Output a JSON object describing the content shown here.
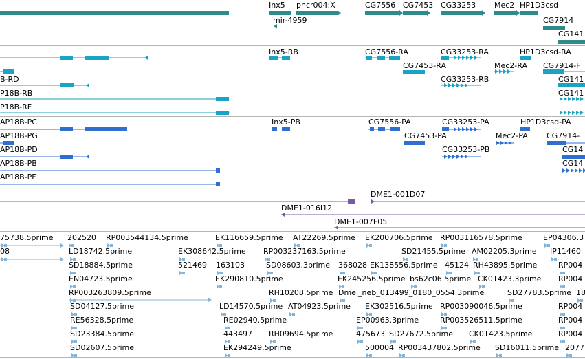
{
  "browser": {
    "colors": {
      "gene": "#2e8b8b",
      "mrna": "#1aa3c4",
      "cds": "#2f6fd0",
      "clone": "#7a5aa8",
      "est": "#84b4d8",
      "divider": "#b4b4b4"
    },
    "genes": [
      {
        "id": "g1",
        "label": "",
        "shape": "bar"
      },
      {
        "id": "g2",
        "label": "Inx5",
        "shape": "bar"
      },
      {
        "id": "g3",
        "label": "pncr004:X",
        "shape": "arrow"
      },
      {
        "id": "g4",
        "label": "mir-4959",
        "shape": "tiny"
      },
      {
        "id": "g5",
        "label": "CG7556",
        "shape": "arrow"
      },
      {
        "id": "g6",
        "label": "CG7453",
        "shape": "arrow"
      },
      {
        "id": "g7",
        "label": "CG33253",
        "shape": "arrow"
      },
      {
        "id": "g8",
        "label": "Mec2",
        "shape": "arrow"
      },
      {
        "id": "g9",
        "label": "HP1D3csd",
        "shape": "arrow"
      },
      {
        "id": "g10",
        "label": "CG7914",
        "shape": "bar"
      },
      {
        "id": "g11",
        "label": "CG141",
        "shape": "bar"
      }
    ],
    "transcripts": [
      {
        "id": "t1",
        "label": ""
      },
      {
        "id": "t2",
        "label": "Inx5-RB"
      },
      {
        "id": "t3",
        "label": "CG7556-RA"
      },
      {
        "id": "t4",
        "label": "CG33253-RA"
      },
      {
        "id": "t5",
        "label": "HP1D3csd-RA"
      },
      {
        "id": "t6",
        "label": "B-RD"
      },
      {
        "id": "t7",
        "label": "CG7453-RA"
      },
      {
        "id": "t8",
        "label": "Mec2-RA"
      },
      {
        "id": "t9",
        "label": "CG7914-F"
      },
      {
        "id": "t10",
        "label": "P18B-RB"
      },
      {
        "id": "t11",
        "label": "CG33253-RB"
      },
      {
        "id": "t12",
        "label": "CG141"
      },
      {
        "id": "t13",
        "label": "P18B-RF"
      },
      {
        "id": "t14",
        "label": "CG141"
      }
    ],
    "proteins": [
      {
        "id": "p1",
        "label": "AP18B-PC"
      },
      {
        "id": "p2",
        "label": "Inx5-PB"
      },
      {
        "id": "p3",
        "label": "CG7556-PA"
      },
      {
        "id": "p4",
        "label": "CG33253-PA"
      },
      {
        "id": "p5",
        "label": "HP1D3csd-PA"
      },
      {
        "id": "p6",
        "label": "AP18B-PG"
      },
      {
        "id": "p7",
        "label": "CG7453-PA"
      },
      {
        "id": "p8",
        "label": "Mec2-PA"
      },
      {
        "id": "p9",
        "label": "CG7914-"
      },
      {
        "id": "p10",
        "label": "AP18B-PD"
      },
      {
        "id": "p11",
        "label": "CG33253-PB"
      },
      {
        "id": "p12",
        "label": "CG14"
      },
      {
        "id": "p13",
        "label": "AP18B-PB"
      },
      {
        "id": "p14",
        "label": "CG14"
      },
      {
        "id": "p15",
        "label": "AP18B-PF"
      }
    ],
    "clones": [
      {
        "id": "c1",
        "label": "DME1-001D07"
      },
      {
        "id": "c2",
        "label": "DME1-016I12"
      },
      {
        "id": "c3",
        "label": "DME1-007F05"
      }
    ],
    "ests": [
      {
        "id": "e1",
        "label": "75738.5prime"
      },
      {
        "id": "e2",
        "label": "202520"
      },
      {
        "id": "e3",
        "label": "RP003544134.5prime"
      },
      {
        "id": "e4",
        "label": "EK116659.5prime"
      },
      {
        "id": "e5",
        "label": "AT22269.5prime"
      },
      {
        "id": "e6",
        "label": "EK200706.5prime"
      },
      {
        "id": "e7",
        "label": "RP003116578.5prime"
      },
      {
        "id": "e8",
        "label": "EP04306.3"
      },
      {
        "id": "e9",
        "label": "08"
      },
      {
        "id": "e10",
        "label": "LD18742.5prime"
      },
      {
        "id": "e11",
        "label": "EK308642.5prime"
      },
      {
        "id": "e12",
        "label": "RP003237163.5prime"
      },
      {
        "id": "e13",
        "label": "SD21455.5prime"
      },
      {
        "id": "e14",
        "label": "AM02205.3prime"
      },
      {
        "id": "e15",
        "label": "IP11460"
      },
      {
        "id": "e16",
        "label": "SD18884.5prime"
      },
      {
        "id": "e17",
        "label": "521469"
      },
      {
        "id": "e18",
        "label": "163103"
      },
      {
        "id": "e19",
        "label": "SD08603.3prime"
      },
      {
        "id": "e20",
        "label": "368028"
      },
      {
        "id": "e21",
        "label": "EK138556.5prime"
      },
      {
        "id": "e22",
        "label": "45124"
      },
      {
        "id": "e23",
        "label": "RH43895.5prime"
      },
      {
        "id": "e24",
        "label": "RP004"
      },
      {
        "id": "e25",
        "label": "EN04723.5prime"
      },
      {
        "id": "e26",
        "label": "EK290810.5prime"
      },
      {
        "id": "e27",
        "label": "EK245256.5prime"
      },
      {
        "id": "e28",
        "label": "bs62c06.5prime"
      },
      {
        "id": "e29",
        "label": "CK01423.3prime"
      },
      {
        "id": "e30",
        "label": "RP004"
      },
      {
        "id": "e31",
        "label": "RP003263809.5prime"
      },
      {
        "id": "e32",
        "label": "RH10208.5prime"
      },
      {
        "id": "e33",
        "label": "Dmel_neb_013499_0180_0554.3prime"
      },
      {
        "id": "e34",
        "label": "SD27783.5prime"
      },
      {
        "id": "e35",
        "label": "18"
      },
      {
        "id": "e36",
        "label": "SD04127.5prime"
      },
      {
        "id": "e37",
        "label": "LD14570.5prime"
      },
      {
        "id": "e38",
        "label": "AT04923.5prime"
      },
      {
        "id": "e39",
        "label": "EK302516.5prime"
      },
      {
        "id": "e40",
        "label": "RP003090046.5prime"
      },
      {
        "id": "e41",
        "label": "RP004"
      },
      {
        "id": "e42",
        "label": "RE56328.5prime"
      },
      {
        "id": "e43",
        "label": "RE02940.5prime"
      },
      {
        "id": "e44",
        "label": "EP00963.3prime"
      },
      {
        "id": "e45",
        "label": "RP003526511.5prime"
      },
      {
        "id": "e46",
        "label": "RP004"
      },
      {
        "id": "e47",
        "label": "SD23384.5prime"
      },
      {
        "id": "e48",
        "label": "443497"
      },
      {
        "id": "e49",
        "label": "RH09694.5prime"
      },
      {
        "id": "e50",
        "label": "475673"
      },
      {
        "id": "e51",
        "label": "SD27672.5prime"
      },
      {
        "id": "e52",
        "label": "CK01423.5prime"
      },
      {
        "id": "e53",
        "label": "RP004"
      },
      {
        "id": "e54",
        "label": "SD02607.5prime"
      },
      {
        "id": "e55",
        "label": "EK294249.5prime"
      },
      {
        "id": "e56",
        "label": "500004"
      },
      {
        "id": "e57",
        "label": "RP003437802.5prime"
      },
      {
        "id": "e58",
        "label": "SD16011.5prime"
      },
      {
        "id": "e59",
        "label": "2077"
      }
    ]
  }
}
